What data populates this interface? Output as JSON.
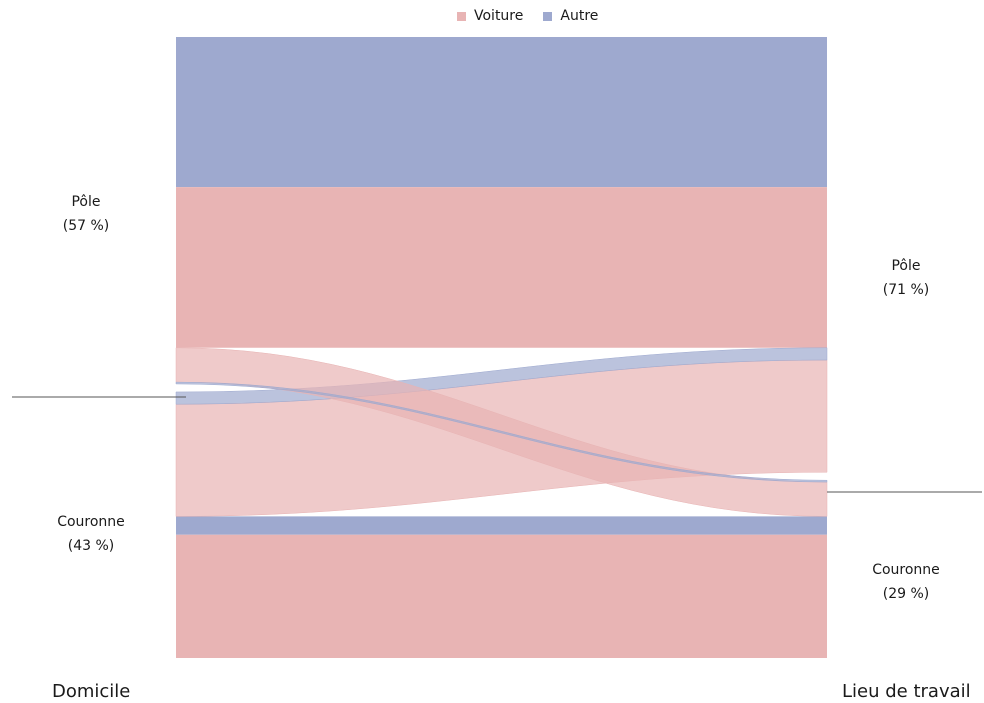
{
  "chart_data": {
    "type": "sankey",
    "legend": [
      {
        "name": "Voiture",
        "color": "#e8b4b4"
      },
      {
        "name": "Autre",
        "color": "#9ea9cf"
      }
    ],
    "left_axis_title": "Domicile",
    "right_axis_title": "Lieu de travail",
    "left_nodes": [
      {
        "name": "Pôle",
        "share_label": "(57 %)",
        "share": 57
      },
      {
        "name": "Couronne",
        "share_label": "(43 %)",
        "share": 43
      }
    ],
    "right_nodes": [
      {
        "name": "Pôle",
        "share_label": "(71 %)",
        "share": 71
      },
      {
        "name": "Couronne",
        "share_label": "(29 %)",
        "share": 29
      }
    ],
    "flows": [
      {
        "from": "Pôle",
        "to": "Pôle",
        "mode": "Autre",
        "share": 24.5
      },
      {
        "from": "Pôle",
        "to": "Pôle",
        "mode": "Voiture",
        "share": 26.2
      },
      {
        "from": "Pôle",
        "to": "Couronne",
        "mode": "Autre",
        "share": 0.3
      },
      {
        "from": "Pôle",
        "to": "Couronne",
        "mode": "Voiture",
        "share": 5.6
      },
      {
        "from": "Couronne",
        "to": "Pôle",
        "mode": "Autre",
        "share": 2.0
      },
      {
        "from": "Couronne",
        "to": "Pôle",
        "mode": "Voiture",
        "share": 18.3
      },
      {
        "from": "Couronne",
        "to": "Couronne",
        "mode": "Autre",
        "share": 3.0
      },
      {
        "from": "Couronne",
        "to": "Couronne",
        "mode": "Voiture",
        "share": 20.1
      }
    ]
  }
}
